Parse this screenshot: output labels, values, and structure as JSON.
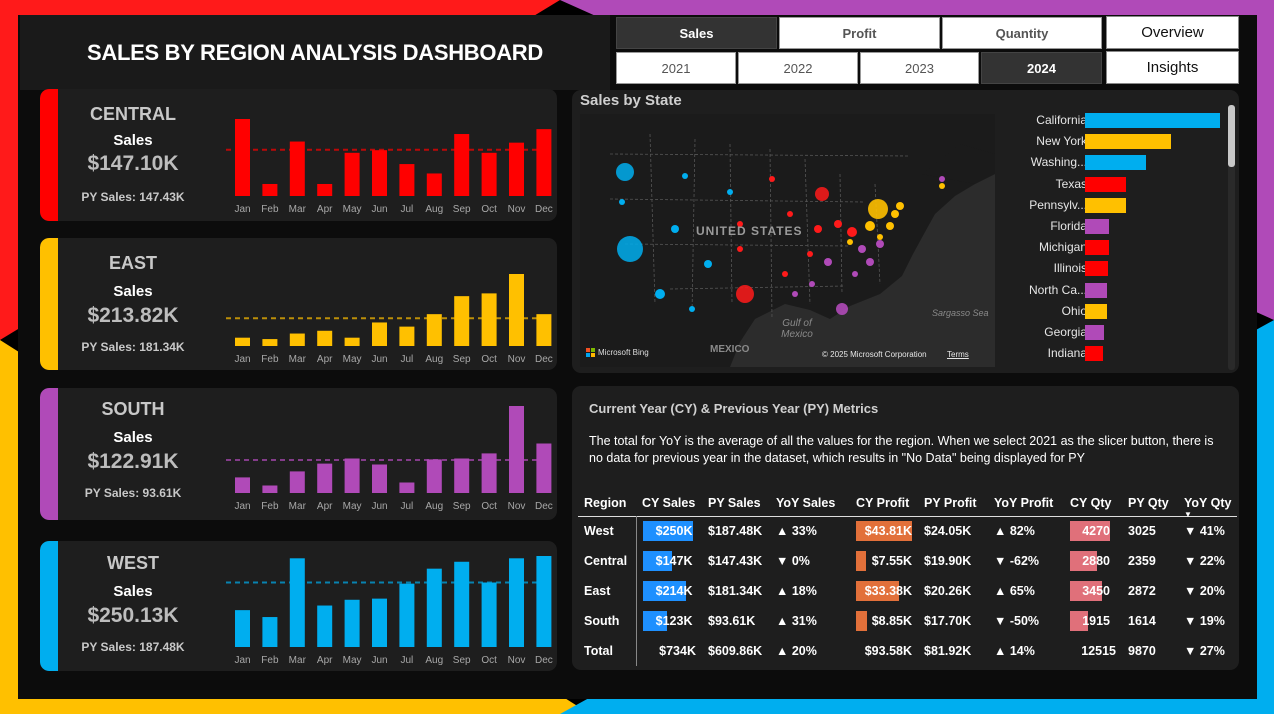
{
  "header": {
    "title": "SALES BY REGION ANALYSIS DASHBOARD"
  },
  "metric_slicer": [
    {
      "label": "Sales",
      "selected": true
    },
    {
      "label": "Profit",
      "selected": false
    },
    {
      "label": "Quantity",
      "selected": false
    }
  ],
  "year_slicer": [
    {
      "label": "2021",
      "selected": false
    },
    {
      "label": "2022",
      "selected": false
    },
    {
      "label": "2023",
      "selected": false
    },
    {
      "label": "2024",
      "selected": true
    }
  ],
  "nav": {
    "overview": "Overview",
    "insights": "Insights"
  },
  "colors": {
    "central": "#ff0000",
    "east": "#ffc000",
    "south": "#b04ab8",
    "west": "#00aeef"
  },
  "regions": [
    {
      "key": "central",
      "name": "CENTRAL",
      "sales_label": "Sales",
      "sales_value": "$147.10K",
      "py_text": "PY Sales: 147.43K"
    },
    {
      "key": "east",
      "name": "EAST",
      "sales_label": "Sales",
      "sales_value": "$213.82K",
      "py_text": "PY Sales: 181.34K"
    },
    {
      "key": "south",
      "name": "SOUTH",
      "sales_label": "Sales",
      "sales_value": "$122.91K",
      "py_text": "PY Sales: 93.61K"
    },
    {
      "key": "west",
      "name": "WEST",
      "sales_label": "Sales",
      "sales_value": "$250.13K",
      "py_text": "PY Sales: 187.48K"
    }
  ],
  "chart_data": [
    {
      "type": "bar",
      "series_name": "CENTRAL",
      "categories": [
        "Jan",
        "Feb",
        "Mar",
        "Apr",
        "May",
        "Jun",
        "Jul",
        "Aug",
        "Sep",
        "Oct",
        "Nov",
        "Dec"
      ],
      "values": [
        20.5,
        3.2,
        14.5,
        3.2,
        11.5,
        12.2,
        8.5,
        6.0,
        16.5,
        11.5,
        14.2,
        17.8
      ],
      "average": 12.3
    },
    {
      "type": "bar",
      "series_name": "EAST",
      "categories": [
        "Jan",
        "Feb",
        "Mar",
        "Apr",
        "May",
        "Jun",
        "Jul",
        "Aug",
        "Sep",
        "Oct",
        "Nov",
        "Dec"
      ],
      "values": [
        3.0,
        2.5,
        4.5,
        5.5,
        3.0,
        8.5,
        7.0,
        11.5,
        18.0,
        19.0,
        26.0,
        11.5
      ],
      "average": 10.0
    },
    {
      "type": "bar",
      "series_name": "SOUTH",
      "categories": [
        "Jan",
        "Feb",
        "Mar",
        "Apr",
        "May",
        "Jun",
        "Jul",
        "Aug",
        "Sep",
        "Oct",
        "Nov",
        "Dec"
      ],
      "values": [
        5.2,
        2.5,
        7.2,
        9.8,
        11.5,
        9.5,
        3.5,
        11.2,
        11.5,
        13.2,
        29.0,
        16.5
      ],
      "average": 11.0
    },
    {
      "type": "bar",
      "series_name": "WEST",
      "categories": [
        "Jan",
        "Feb",
        "Mar",
        "Apr",
        "May",
        "Jun",
        "Jul",
        "Aug",
        "Sep",
        "Oct",
        "Nov",
        "Dec"
      ],
      "values": [
        16.0,
        13.0,
        38.5,
        18.0,
        20.5,
        21.0,
        27.5,
        34.0,
        37.0,
        28.0,
        38.5,
        39.5
      ],
      "average": 28.0
    },
    {
      "type": "bar",
      "title": "Sales by State",
      "categories": [
        "California",
        "New York",
        "Washing...",
        "Texas",
        "Pennsylv...",
        "Florida",
        "Michigan",
        "Illinois",
        "North Ca...",
        "Ohio",
        "Georgia",
        "Indiana"
      ],
      "values": [
        100,
        64,
        45,
        30,
        30,
        18,
        18,
        17,
        16,
        16,
        14,
        13
      ],
      "region_color": [
        "west",
        "east",
        "west",
        "central",
        "east",
        "south",
        "central",
        "central",
        "south",
        "east",
        "south",
        "central"
      ]
    }
  ],
  "map": {
    "title": "Sales by State",
    "labels": {
      "country": "UNITED STATES",
      "mexico": "MEXICO",
      "gulf": "Gulf of Mexico",
      "sargasso": "Sargasso Sea"
    },
    "attribution": "Microsoft Bing",
    "copyright": "© 2025 Microsoft Corporation",
    "terms": "Terms"
  },
  "metrics": {
    "title": "Current Year  (CY) & Previous Year (PY) Metrics",
    "description": "The total for YoY is the average of all the values for the region. When we select 2021 as the slicer button, there is no data for previous year in the dataset, which results in \"No Data\" being displayed for PY",
    "columns": [
      "Region",
      "CY Sales",
      "PY Sales",
      "YoY Sales",
      "CY Profit",
      "PY Profit",
      "YoY Profit",
      "CY Qty",
      "PY Qty",
      "YoY Qty"
    ],
    "rows": [
      {
        "region": "West",
        "cy_sales": "$250K",
        "cy_sales_frac": 1.0,
        "py_sales": "$187.48K",
        "yoy_sales": "▲ 33%",
        "cy_profit": "$43.81K",
        "cy_profit_frac": 1.0,
        "py_profit": "$24.05K",
        "yoy_profit": "▲ 82%",
        "cy_qty": "4270",
        "cy_qty_frac": 1.0,
        "py_qty": "3025",
        "yoy_qty": "▼ 41%"
      },
      {
        "region": "Central",
        "cy_sales": "$147K",
        "cy_sales_frac": 0.59,
        "py_sales": "$147.43K",
        "yoy_sales": "▼ 0%",
        "cy_profit": "$7.55K",
        "cy_profit_frac": 0.17,
        "py_profit": "$19.90K",
        "yoy_profit": "▼ -62%",
        "cy_qty": "2880",
        "cy_qty_frac": 0.67,
        "py_qty": "2359",
        "yoy_qty": "▼ 22%"
      },
      {
        "region": "East",
        "cy_sales": "$214K",
        "cy_sales_frac": 0.86,
        "py_sales": "$181.34K",
        "yoy_sales": "▲ 18%",
        "cy_profit": "$33.38K",
        "cy_profit_frac": 0.76,
        "py_profit": "$20.26K",
        "yoy_profit": "▲ 65%",
        "cy_qty": "3450",
        "cy_qty_frac": 0.81,
        "py_qty": "2872",
        "yoy_qty": "▼ 20%"
      },
      {
        "region": "South",
        "cy_sales": "$123K",
        "cy_sales_frac": 0.49,
        "py_sales": "$93.61K",
        "yoy_sales": "▲ 31%",
        "cy_profit": "$8.85K",
        "cy_profit_frac": 0.2,
        "py_profit": "$17.70K",
        "yoy_profit": "▼ -50%",
        "cy_qty": "1915",
        "cy_qty_frac": 0.45,
        "py_qty": "1614",
        "yoy_qty": "▼ 19%"
      }
    ],
    "total": {
      "region": "Total",
      "cy_sales": "$734K",
      "py_sales": "$609.86K",
      "yoy_sales": "▲ 20%",
      "cy_profit": "$93.58K",
      "py_profit": "$81.92K",
      "yoy_profit": "▲ 14%",
      "cy_qty": "12515",
      "py_qty": "9870",
      "yoy_qty": "▼ 27%"
    },
    "bar_colors": {
      "cy_sales": "#1e90ff",
      "cy_profit": "#e2703a",
      "cy_qty": "#e0707a"
    }
  }
}
